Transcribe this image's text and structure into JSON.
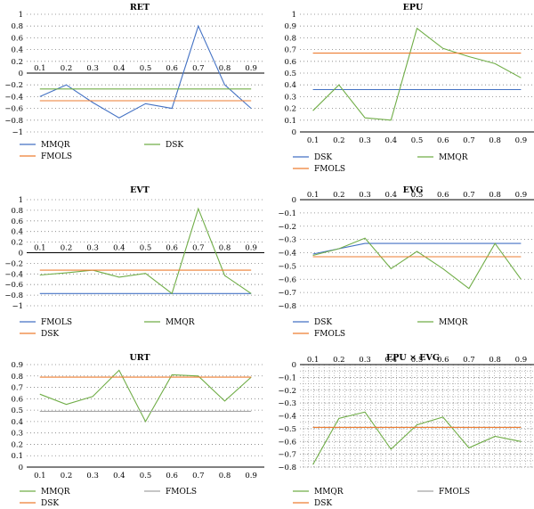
{
  "chart_data": [
    {
      "type": "line",
      "title": "RET",
      "x": [
        0.1,
        0.2,
        0.3,
        0.4,
        0.5,
        0.6,
        0.7,
        0.8,
        0.9
      ],
      "ylim": [
        -1,
        1
      ],
      "yticks": [
        1,
        0.8,
        0.6,
        0.4,
        0.2,
        0,
        -0.2,
        -0.4,
        -0.6,
        -0.8,
        -1
      ],
      "dense_grid": false,
      "x_labels_at": 0,
      "series": [
        {
          "name": "MMQR",
          "color": "#4472c4",
          "values": [
            -0.4,
            -0.2,
            -0.5,
            -0.76,
            -0.52,
            -0.6,
            0.8,
            -0.2,
            -0.6
          ]
        },
        {
          "name": "DSK",
          "color": "#70ad47",
          "values": [
            -0.27,
            -0.27,
            -0.27,
            -0.27,
            -0.27,
            -0.27,
            -0.27,
            -0.27,
            -0.27
          ]
        },
        {
          "name": "FMOLS",
          "color": "#ed7d31",
          "values": [
            -0.47,
            -0.47,
            -0.47,
            -0.47,
            -0.47,
            -0.47,
            -0.47,
            -0.47,
            -0.47
          ]
        }
      ],
      "legend": [
        "MMQR",
        "DSK",
        "FMOLS"
      ]
    },
    {
      "type": "line",
      "title": "EPU",
      "x": [
        0.1,
        0.2,
        0.3,
        0.4,
        0.5,
        0.6,
        0.7,
        0.8,
        0.9
      ],
      "ylim": [
        0,
        1
      ],
      "yticks": [
        1,
        0.9,
        0.8,
        0.7,
        0.6,
        0.5,
        0.4,
        0.3,
        0.2,
        0.1,
        0
      ],
      "dense_grid": false,
      "x_labels_at": "bottom",
      "series": [
        {
          "name": "DSK",
          "color": "#4472c4",
          "values": [
            0.36,
            0.36,
            0.36,
            0.36,
            0.36,
            0.36,
            0.36,
            0.36,
            0.36
          ]
        },
        {
          "name": "MMQR",
          "color": "#70ad47",
          "values": [
            0.18,
            0.4,
            0.12,
            0.1,
            0.88,
            0.71,
            0.64,
            0.58,
            0.46
          ]
        },
        {
          "name": "FMOLS",
          "color": "#ed7d31",
          "values": [
            0.67,
            0.67,
            0.67,
            0.67,
            0.67,
            0.67,
            0.67,
            0.67,
            0.67
          ]
        }
      ],
      "legend": [
        "DSK",
        "MMQR",
        "FMOLS"
      ]
    },
    {
      "type": "line",
      "title": "EVT",
      "x": [
        0.1,
        0.2,
        0.3,
        0.4,
        0.5,
        0.6,
        0.7,
        0.8,
        0.9
      ],
      "ylim": [
        -1,
        1
      ],
      "yticks": [
        1,
        0.8,
        0.6,
        0.4,
        0.2,
        0,
        -0.2,
        -0.4,
        -0.6,
        -0.8,
        -1
      ],
      "dense_grid": false,
      "x_labels_at": 0,
      "series": [
        {
          "name": "FMOLS",
          "color": "#4472c4",
          "values": [
            -0.77,
            -0.77,
            -0.77,
            -0.77,
            -0.77,
            -0.77,
            -0.77,
            -0.77,
            -0.77
          ]
        },
        {
          "name": "MMQR",
          "color": "#70ad47",
          "values": [
            -0.42,
            -0.38,
            -0.33,
            -0.46,
            -0.39,
            -0.77,
            0.83,
            -0.43,
            -0.77
          ]
        },
        {
          "name": "DSK",
          "color": "#ed7d31",
          "values": [
            -0.33,
            -0.33,
            -0.33,
            -0.33,
            -0.33,
            -0.33,
            -0.33,
            -0.33,
            -0.33
          ]
        }
      ],
      "legend": [
        "FMOLS",
        "MMQR",
        "DSK"
      ]
    },
    {
      "type": "line",
      "title": "EVG",
      "x": [
        0.1,
        0.2,
        0.3,
        0.4,
        0.5,
        0.6,
        0.7,
        0.8,
        0.9
      ],
      "ylim": [
        -0.8,
        0
      ],
      "yticks": [
        0,
        -0.1,
        -0.2,
        -0.3,
        -0.4,
        -0.5,
        -0.6,
        -0.7,
        -0.8
      ],
      "dense_grid": false,
      "x_labels_at": 0,
      "series": [
        {
          "name": "DSK",
          "color": "#4472c4",
          "values": [
            -0.41,
            -0.37,
            -0.33,
            -0.33,
            -0.33,
            -0.33,
            -0.33,
            -0.33,
            -0.33
          ]
        },
        {
          "name": "MMQR",
          "color": "#70ad47",
          "values": [
            -0.42,
            -0.37,
            -0.29,
            -0.52,
            -0.39,
            -0.52,
            -0.67,
            -0.33,
            -0.6
          ]
        },
        {
          "name": "FMOLS",
          "color": "#ed7d31",
          "values": [
            -0.43,
            -0.43,
            -0.43,
            -0.43,
            -0.43,
            -0.43,
            -0.43,
            -0.43,
            -0.43
          ]
        }
      ],
      "legend": [
        "DSK",
        "MMQR",
        "FMOLS"
      ]
    },
    {
      "type": "line",
      "title": "URT",
      "x": [
        0.1,
        0.2,
        0.3,
        0.4,
        0.5,
        0.6,
        0.7,
        0.8,
        0.9
      ],
      "ylim": [
        0,
        0.9
      ],
      "yticks": [
        0.9,
        0.8,
        0.7,
        0.6,
        0.5,
        0.4,
        0.3,
        0.2,
        0.1,
        0
      ],
      "dense_grid": false,
      "x_labels_at": "bottom",
      "series": [
        {
          "name": "MMQR",
          "color": "#70ad47",
          "values": [
            0.64,
            0.55,
            0.62,
            0.85,
            0.4,
            0.81,
            0.8,
            0.58,
            0.79
          ]
        },
        {
          "name": "FMOLS",
          "color": "#a5a5a5",
          "values": [
            0.49,
            0.49,
            0.49,
            0.49,
            0.49,
            0.49,
            0.49,
            0.49,
            0.49
          ]
        },
        {
          "name": "DSK",
          "color": "#ed7d31",
          "values": [
            0.79,
            0.79,
            0.79,
            0.79,
            0.79,
            0.79,
            0.79,
            0.79,
            0.79
          ]
        }
      ],
      "legend": [
        "MMQR",
        "FMOLS",
        "DSK"
      ]
    },
    {
      "type": "line",
      "title": "EPU × EVG",
      "x": [
        0.1,
        0.2,
        0.3,
        0.4,
        0.5,
        0.6,
        0.7,
        0.8,
        0.9
      ],
      "ylim": [
        -0.8,
        0
      ],
      "yticks": [
        0,
        -0.1,
        -0.2,
        -0.3,
        -0.4,
        -0.5,
        -0.6,
        -0.7,
        -0.8
      ],
      "dense_grid": true,
      "x_labels_at": 0,
      "series": [
        {
          "name": "MMQR",
          "color": "#70ad47",
          "values": [
            -0.78,
            -0.42,
            -0.37,
            -0.66,
            -0.47,
            -0.41,
            -0.65,
            -0.56,
            -0.6
          ]
        },
        {
          "name": "FMOLS",
          "color": "#a5a5a5",
          "values": [
            -0.49,
            -0.49,
            -0.49,
            -0.49,
            -0.49,
            -0.49,
            -0.49,
            -0.49,
            -0.49
          ]
        },
        {
          "name": "DSK",
          "color": "#ed7d31",
          "values": [
            -0.49,
            -0.49,
            -0.49,
            -0.49,
            -0.49,
            -0.49,
            -0.49,
            -0.49,
            -0.49
          ]
        }
      ],
      "legend": [
        "MMQR",
        "FMOLS",
        "DSK"
      ]
    }
  ]
}
